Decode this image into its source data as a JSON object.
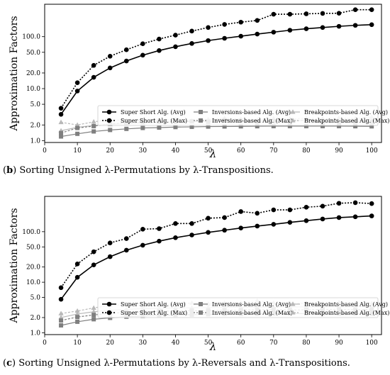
{
  "chart_data": [
    {
      "type": "line",
      "caption_label": "b",
      "caption_text": "Sorting Unsigned λ-Permutations by λ-Transpositions.",
      "xlabel": "λ",
      "ylabel": "Approximation Factors",
      "yscale": "log",
      "xlim": [
        0,
        103
      ],
      "ylim": [
        0.92,
        420
      ],
      "x_ticks": [
        0,
        10,
        20,
        30,
        40,
        50,
        60,
        70,
        80,
        90,
        100
      ],
      "y_ticks": [
        1.0,
        2.0,
        5.0,
        10.0,
        20.0,
        50.0,
        100.0
      ],
      "y_tick_labels": [
        "1.0",
        "2.0",
        "5.0",
        "10.0",
        "20.0",
        "50.0",
        "100.0"
      ],
      "legend_position": "lower-center",
      "x": [
        5,
        10,
        15,
        20,
        25,
        30,
        35,
        40,
        45,
        50,
        55,
        60,
        65,
        70,
        75,
        80,
        85,
        90,
        95,
        100
      ],
      "series": [
        {
          "name": "Super Short Alg. (Avg)",
          "color": "#000000",
          "dashed": false,
          "marker": "circle",
          "values": [
            3.2,
            9.0,
            16.5,
            25.0,
            34.0,
            44.0,
            54.0,
            64.0,
            74.0,
            84.0,
            93.0,
            102.0,
            112.0,
            122.0,
            133.0,
            142.0,
            150.0,
            158.0,
            165.0,
            170.0
          ]
        },
        {
          "name": "Super Short Alg. (Max)",
          "color": "#000000",
          "dashed": true,
          "marker": "circle",
          "values": [
            4.2,
            13.0,
            28.0,
            42.0,
            56.0,
            73.0,
            90.0,
            107.0,
            128.0,
            150.0,
            172.0,
            190.0,
            205.0,
            270.0,
            270.0,
            275.0,
            280.0,
            282.0,
            330.0,
            330.0
          ]
        },
        {
          "name": "Inversions-based Alg. (Avg)",
          "color": "#7f7f7f",
          "dashed": false,
          "marker": "square",
          "values": [
            1.2,
            1.35,
            1.5,
            1.6,
            1.68,
            1.75,
            1.78,
            1.82,
            1.84,
            1.86,
            1.87,
            1.88,
            1.89,
            1.9,
            1.9,
            1.9,
            1.9,
            1.9,
            1.89,
            1.88
          ]
        },
        {
          "name": "Inversions-based Alg. (Max)",
          "color": "#7f7f7f",
          "dashed": true,
          "marker": "square",
          "values": [
            1.4,
            1.75,
            1.9,
            2.1,
            2.2,
            2.25,
            2.3,
            2.3,
            2.35,
            2.3,
            2.5,
            2.4,
            2.3,
            2.35,
            2.3,
            2.5,
            2.3,
            2.25,
            2.3,
            2.3
          ]
        },
        {
          "name": "Breakpoints-based Alg. (Avg)",
          "color": "#b8b8b8",
          "dashed": false,
          "marker": "triangle",
          "values": [
            1.55,
            1.8,
            1.95,
            2.05,
            2.12,
            2.2,
            2.25,
            2.3,
            2.32,
            2.35,
            2.38,
            2.4,
            2.42,
            2.43,
            2.45,
            2.45,
            2.47,
            2.48,
            2.48,
            2.5
          ]
        },
        {
          "name": "Breakpoints-based Alg. (Max)",
          "color": "#b8b8b8",
          "dashed": true,
          "marker": "triangle",
          "values": [
            2.25,
            2.0,
            2.3,
            2.5,
            2.45,
            2.45,
            2.5,
            2.55,
            2.4,
            2.55,
            2.7,
            2.6,
            2.5,
            2.65,
            2.6,
            2.7,
            2.65,
            2.7,
            2.65,
            2.85
          ]
        }
      ]
    },
    {
      "type": "line",
      "caption_label": "c",
      "caption_text": "Sorting Unsigned λ-Permutations by λ-Reversals and λ-Transpositions.",
      "xlabel": "λ",
      "ylabel": "Approximation Factors",
      "yscale": "log",
      "xlim": [
        0,
        103
      ],
      "ylim": [
        0.92,
        500
      ],
      "x_ticks": [
        0,
        10,
        20,
        30,
        40,
        50,
        60,
        70,
        80,
        90,
        100
      ],
      "y_ticks": [
        1.0,
        2.0,
        5.0,
        10.0,
        20.0,
        50.0,
        100.0
      ],
      "y_tick_labels": [
        "1.0",
        "2.0",
        "5.0",
        "10.0",
        "20.0",
        "50.0",
        "100.0"
      ],
      "legend_position": "lower-center",
      "x": [
        5,
        10,
        15,
        20,
        25,
        30,
        35,
        40,
        45,
        50,
        55,
        60,
        65,
        70,
        75,
        80,
        85,
        90,
        95,
        100
      ],
      "series": [
        {
          "name": "Super Short Alg. (Avg)",
          "color": "#000000",
          "dashed": false,
          "marker": "circle",
          "values": [
            4.6,
            12.5,
            22.0,
            32.0,
            43.0,
            54.0,
            65.0,
            76.0,
            86.0,
            97.0,
            107.0,
            118.0,
            129.0,
            140.0,
            153.0,
            165.0,
            178.0,
            190.0,
            197.0,
            205.0
          ]
        },
        {
          "name": "Super Short Alg. (Max)",
          "color": "#000000",
          "dashed": true,
          "marker": "circle",
          "values": [
            7.8,
            23.0,
            40.0,
            60.0,
            73.0,
            112.0,
            115.0,
            145.0,
            145.0,
            185.0,
            190.0,
            250.0,
            232.0,
            270.0,
            270.0,
            305.0,
            320.0,
            365.0,
            375.0,
            360.0
          ]
        },
        {
          "name": "Inversions-based Alg. (Avg)",
          "color": "#7f7f7f",
          "dashed": false,
          "marker": "square",
          "values": [
            1.4,
            1.65,
            1.85,
            1.97,
            2.08,
            2.15,
            2.2,
            2.25,
            2.28,
            2.32,
            2.34,
            2.36,
            2.38,
            2.4,
            2.4,
            2.4,
            2.4,
            2.4,
            2.4,
            2.38
          ]
        },
        {
          "name": "Inversions-based Alg. (Max)",
          "color": "#7f7f7f",
          "dashed": true,
          "marker": "square",
          "values": [
            1.75,
            2.05,
            2.25,
            2.45,
            2.5,
            2.6,
            2.65,
            2.7,
            2.75,
            2.75,
            2.8,
            2.8,
            2.85,
            2.9,
            2.8,
            2.85,
            2.9,
            2.9,
            2.85,
            2.9
          ]
        },
        {
          "name": "Breakpoints-based Alg. (Avg)",
          "color": "#b8b8b8",
          "dashed": false,
          "marker": "triangle",
          "values": [
            2.0,
            2.35,
            2.6,
            2.8,
            2.9,
            3.0,
            3.05,
            3.1,
            3.12,
            3.15,
            3.18,
            3.2,
            3.2,
            3.22,
            3.25,
            3.25,
            3.27,
            3.28,
            3.3,
            3.3
          ]
        },
        {
          "name": "Breakpoints-based Alg. (Max)",
          "color": "#b8b8b8",
          "dashed": true,
          "marker": "triangle",
          "values": [
            2.4,
            2.7,
            3.1,
            3.5,
            3.6,
            3.4,
            3.6,
            3.6,
            3.9,
            3.7,
            3.9,
            3.9,
            4.3,
            3.9,
            3.9,
            3.8,
            3.8,
            4.0,
            3.8,
            3.8
          ]
        }
      ]
    }
  ]
}
